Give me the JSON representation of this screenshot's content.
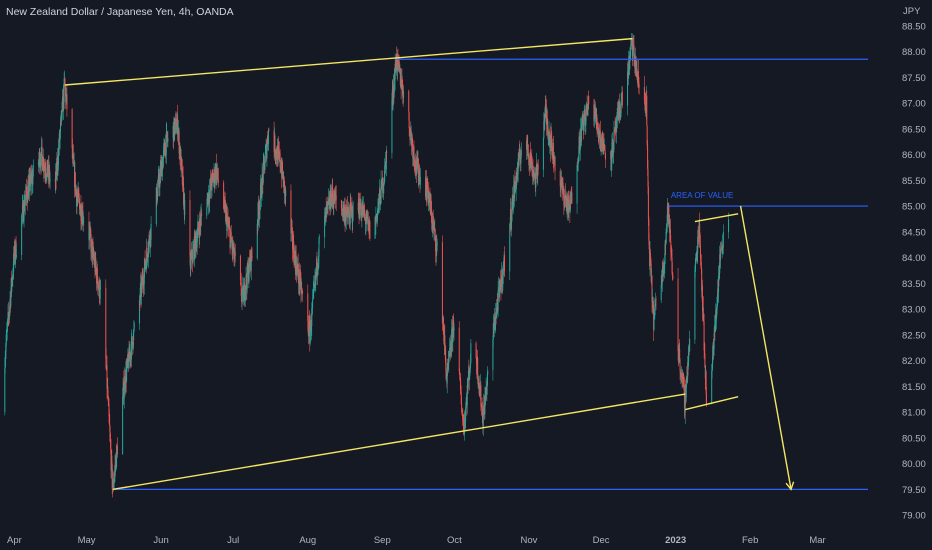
{
  "chart_data": {
    "type": "candlestick",
    "title": "New Zealand Dollar / Japanese Yen, 4h, OANDA",
    "currency_label": "JPY",
    "ylim": [
      78.75,
      89.0
    ],
    "y_ticks": [
      79.0,
      79.5,
      80.0,
      80.5,
      81.0,
      81.5,
      82.0,
      82.5,
      83.0,
      83.5,
      84.0,
      84.5,
      85.0,
      85.5,
      86.0,
      86.5,
      87.0,
      87.5,
      88.0,
      88.5
    ],
    "x_range": [
      "2022-03-26",
      "2023-03-22"
    ],
    "x_ticks": [
      {
        "date": "2022-04-01",
        "label": "Apr"
      },
      {
        "date": "2022-05-01",
        "label": "May"
      },
      {
        "date": "2022-06-01",
        "label": "Jun"
      },
      {
        "date": "2022-07-01",
        "label": "Jul"
      },
      {
        "date": "2022-08-01",
        "label": "Aug"
      },
      {
        "date": "2022-09-01",
        "label": "Sep"
      },
      {
        "date": "2022-10-01",
        "label": "Oct"
      },
      {
        "date": "2022-11-01",
        "label": "Nov"
      },
      {
        "date": "2022-12-01",
        "label": "Dec"
      },
      {
        "date": "2023-01-01",
        "label": "2023"
      },
      {
        "date": "2023-02-01",
        "label": "Feb"
      },
      {
        "date": "2023-03-01",
        "label": "Mar"
      }
    ],
    "price_path": [
      [
        "2022-03-26",
        81.0
      ],
      [
        "2022-04-01",
        84.0
      ],
      [
        "2022-04-06",
        85.2
      ],
      [
        "2022-04-12",
        86.0
      ],
      [
        "2022-04-18",
        85.3
      ],
      [
        "2022-04-22",
        87.35
      ],
      [
        "2022-04-27",
        85.2
      ],
      [
        "2022-05-02",
        84.5
      ],
      [
        "2022-05-08",
        83.0
      ],
      [
        "2022-05-12",
        79.5
      ],
      [
        "2022-05-17",
        81.6
      ],
      [
        "2022-05-22",
        82.8
      ],
      [
        "2022-05-27",
        84.3
      ],
      [
        "2022-06-03",
        86.2
      ],
      [
        "2022-06-08",
        86.6
      ],
      [
        "2022-06-13",
        83.8
      ],
      [
        "2022-06-18",
        84.8
      ],
      [
        "2022-06-24",
        85.7
      ],
      [
        "2022-06-29",
        84.6
      ],
      [
        "2022-07-05",
        83.2
      ],
      [
        "2022-07-10",
        84.3
      ],
      [
        "2022-07-16",
        86.5
      ],
      [
        "2022-07-21",
        85.8
      ],
      [
        "2022-07-26",
        84.2
      ],
      [
        "2022-08-02",
        82.5
      ],
      [
        "2022-08-06",
        84.3
      ],
      [
        "2022-08-11",
        85.2
      ],
      [
        "2022-08-18",
        84.8
      ],
      [
        "2022-08-23",
        85.0
      ],
      [
        "2022-08-28",
        84.4
      ],
      [
        "2022-09-02",
        85.6
      ],
      [
        "2022-09-07",
        87.85
      ],
      [
        "2022-09-11",
        87.0
      ],
      [
        "2022-09-15",
        85.8
      ],
      [
        "2022-09-20",
        85.3
      ],
      [
        "2022-09-25",
        83.8
      ],
      [
        "2022-09-28",
        81.6
      ],
      [
        "2022-10-01",
        82.8
      ],
      [
        "2022-10-05",
        80.7
      ],
      [
        "2022-10-09",
        82.6
      ],
      [
        "2022-10-13",
        80.9
      ],
      [
        "2022-10-18",
        82.8
      ],
      [
        "2022-10-23",
        84.2
      ],
      [
        "2022-10-26",
        85.3
      ],
      [
        "2022-10-30",
        86.4
      ],
      [
        "2022-11-04",
        85.5
      ],
      [
        "2022-11-08",
        86.8
      ],
      [
        "2022-11-13",
        85.6
      ],
      [
        "2022-11-18",
        84.9
      ],
      [
        "2022-11-23",
        86.5
      ],
      [
        "2022-11-27",
        87.1
      ],
      [
        "2022-12-01",
        86.3
      ],
      [
        "2022-12-05",
        85.9
      ],
      [
        "2022-12-09",
        86.9
      ],
      [
        "2022-12-12",
        87.5
      ],
      [
        "2022-12-14",
        88.15
      ],
      [
        "2022-12-17",
        87.3
      ],
      [
        "2022-12-20",
        87.0
      ],
      [
        "2022-12-21",
        84.3
      ],
      [
        "2022-12-23",
        82.8
      ],
      [
        "2022-12-27",
        83.8
      ],
      [
        "2022-12-29",
        84.95
      ],
      [
        "2023-01-02",
        82.3
      ],
      [
        "2023-01-05",
        81.2
      ],
      [
        "2023-01-08",
        83.0
      ],
      [
        "2023-01-11",
        84.7
      ],
      [
        "2023-01-14",
        81.2
      ],
      [
        "2023-01-17",
        82.3
      ],
      [
        "2023-01-20",
        84.2
      ],
      [
        "2023-01-23",
        84.8
      ]
    ],
    "horizontal_lines": [
      {
        "price": 87.85,
        "from": "2022-09-07",
        "color": "#2962ff"
      },
      {
        "price": 85.0,
        "from": "2022-12-29",
        "color": "#2962ff"
      },
      {
        "price": 79.5,
        "from": "2022-05-12",
        "color": "#2962ff"
      }
    ],
    "trend_lines": [
      {
        "from": [
          "2022-04-22",
          87.35
        ],
        "to": [
          "2022-12-14",
          88.25
        ],
        "color": "#f5e663"
      },
      {
        "from": [
          "2022-05-12",
          79.5
        ],
        "to": [
          "2023-01-05",
          81.35
        ],
        "color": "#f5e663"
      },
      {
        "from": [
          "2023-01-05",
          81.05
        ],
        "to": [
          "2023-01-27",
          81.3
        ],
        "color": "#f5e663"
      },
      {
        "from": [
          "2023-01-09",
          84.7
        ],
        "to": [
          "2023-01-27",
          84.85
        ],
        "color": "#f5e663"
      }
    ],
    "projection_arrow": {
      "from": [
        "2023-01-28",
        85.0
      ],
      "to": [
        "2023-02-18",
        79.5
      ],
      "color": "#f5e663"
    },
    "annotations": [
      {
        "text": "AREA OF VALUE",
        "at": [
          "2022-12-30",
          85.1
        ],
        "color": "#2962ff"
      }
    ],
    "colors": {
      "up": "#26a69a",
      "down": "#ef5350",
      "background": "#151924"
    }
  }
}
